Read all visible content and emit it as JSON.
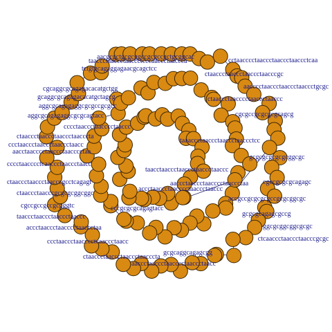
{
  "graph": {
    "node_color": "#d98a12",
    "label_color": "#1a1a8c",
    "labels": [
      "aacgcgctgcgcggccgcgccgctgcggcac",
      "taaccctaaccctaaccctcccaaccctaaccca",
      "tctgtgcagaggagaacgcagctcc",
      "cgcaggcgcagagacacatgctgg",
      "gcaggcgcagagacacatgctagcg",
      "aggcgcagagaggcgcgccgcgcc",
      "aggcgcagagaggcgcgcagtacc",
      "cccctaaccctaacccctaaccc",
      "ctaaccctaaccctaaccctaacccta",
      "ccctaaccctaaccctaaccctaacc",
      "aacctaacccctaaccctaacccctaa",
      "cccctaacccctcaaccctaaccctaacc",
      "ctaaccctaaccctaacccgcctcagagt",
      "ctaaccctaacccgcgcgcggcggc",
      "cgccgccgccgcgggtc",
      "taaccctaaccctaaccctaaccc",
      "accctaaccctaacccctaaccctaa",
      "ccctaaccctaacccctcaaccctaacc",
      "ctaaccctaaccctaaccctaacccta",
      "aaccctaaccctaacccctaaccctaacc",
      "accctaaccctaacccctaaccctaaccc",
      "aaccctaaccctaacccctaaccctaa",
      "taacctaaccctaaccctaaccctaaccc",
      "taaaccctaaccctaaccctaaccctcc",
      "ctaaccctaacccctaaccctaaccc",
      "ctaaccctaaccctaaccctaacccgc",
      "cctaacccctaaccctaaccctaaccctcaa",
      "aacccctaaccctaaccctaaccctgcgc",
      "cgcgccgcgcgcgcagcg",
      "gcgcgcgcgcgcggcgc",
      "cgccgcgcgcagagc",
      "accgccgcgcgcgccgcgcggcgc",
      "gcgcgcagagcgccg",
      "ggcgcggcggcgcgc",
      "ctcaaccctaaccctaacccgcgc",
      "gcgcaggcagagcgg",
      "cccgcgcgcagagtacc"
    ]
  }
}
